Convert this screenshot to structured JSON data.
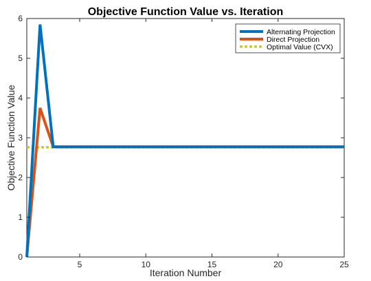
{
  "chart_data": {
    "type": "line",
    "title": "Objective Function Value vs. Iteration",
    "xlabel": "Iteration Number",
    "ylabel": "Objective Function Value",
    "xlim": [
      1,
      25
    ],
    "ylim": [
      0,
      6
    ],
    "xticks": [
      5,
      10,
      15,
      20,
      25
    ],
    "yticks": [
      0,
      1,
      2,
      3,
      4,
      5,
      6
    ],
    "grid": false,
    "legend_position": "top-right",
    "series": [
      {
        "name": "Alternating Projection",
        "color": "#0072BD",
        "style": "solid",
        "x": [
          1,
          2,
          3,
          4,
          5,
          6,
          7,
          8,
          9,
          10,
          11,
          12,
          13,
          14,
          15,
          16,
          17,
          18,
          19,
          20,
          21,
          22,
          23,
          24,
          25
        ],
        "values": [
          0,
          5.85,
          2.77,
          2.77,
          2.77,
          2.77,
          2.77,
          2.77,
          2.77,
          2.77,
          2.77,
          2.77,
          2.77,
          2.77,
          2.77,
          2.77,
          2.77,
          2.77,
          2.77,
          2.77,
          2.77,
          2.77,
          2.77,
          2.77,
          2.77
        ]
      },
      {
        "name": "Direct Projection",
        "color": "#D95319",
        "style": "solid",
        "x": [
          1,
          2,
          3,
          4,
          5,
          6,
          7,
          8,
          9,
          10,
          11,
          12,
          13,
          14,
          15,
          16,
          17,
          18,
          19,
          20,
          21,
          22,
          23,
          24,
          25
        ],
        "values": [
          0,
          3.75,
          2.77,
          2.77,
          2.77,
          2.77,
          2.77,
          2.77,
          2.77,
          2.77,
          2.77,
          2.77,
          2.77,
          2.77,
          2.77,
          2.77,
          2.77,
          2.77,
          2.77,
          2.77,
          2.77,
          2.77,
          2.77,
          2.77,
          2.77
        ]
      },
      {
        "name": "Optimal Value (CVX)",
        "color": "#C8C832",
        "style": "dotted",
        "x": [
          1,
          25
        ],
        "values": [
          2.76,
          2.76
        ]
      }
    ]
  }
}
